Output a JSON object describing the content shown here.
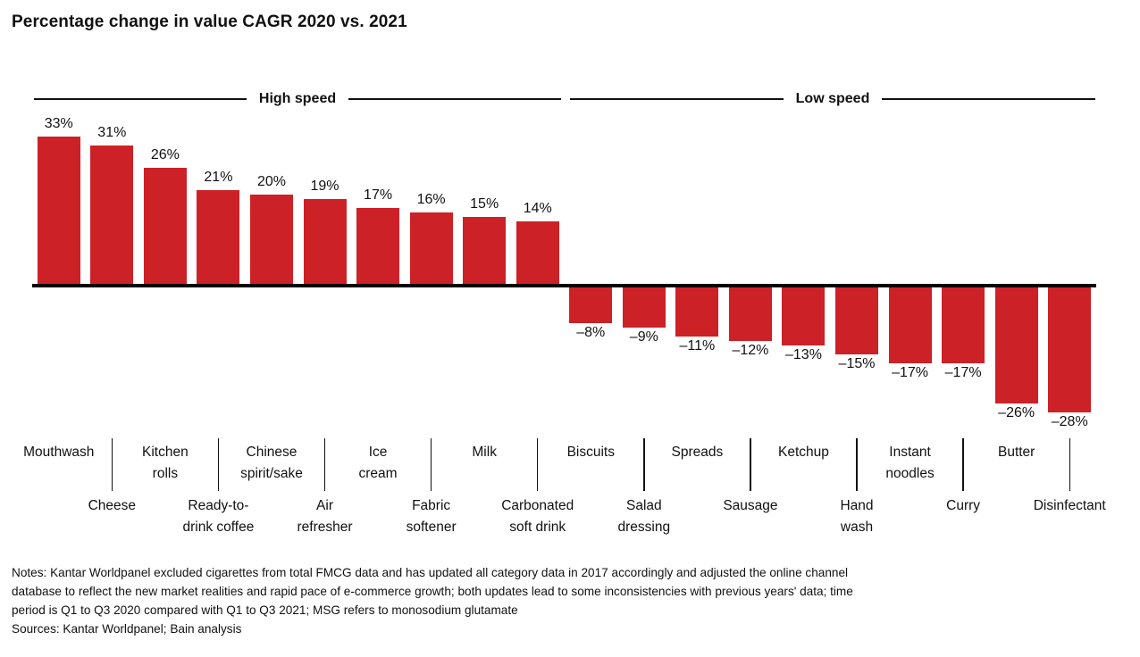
{
  "title": "Percentage change in value CAGR 2020 vs. 2021",
  "headers": {
    "high_speed": "High speed",
    "low_speed": "Low speed"
  },
  "notes_lines": [
    "Notes: Kantar Worldpanel excluded cigarettes from total FMCG data and has updated all category data in 2017 accordingly and adjusted the online channel",
    "database to reflect the new market realities and rapid pace of e-commerce growth; both updates lead to some inconsistencies with previous years' data; time",
    "period is Q1 to Q3 2020 compared with Q1 to Q3 2021; MSG refers to monosodium glutamate"
  ],
  "sources_line": "Sources: Kantar Worldpanel; Bain analysis",
  "colors": {
    "bar": "#cc2127",
    "axis": "#000000",
    "text": "#111111"
  },
  "chart_data": {
    "type": "bar",
    "title": "Percentage change in value CAGR 2020 vs. 2021",
    "unit": "percent",
    "ylim": [
      -28,
      33
    ],
    "grid": false,
    "legend": "none",
    "group_labels": [
      "High speed",
      "Low speed"
    ],
    "points": [
      {
        "category": "Mouthwash",
        "label_lines": [
          "Mouthwash"
        ],
        "value": 33,
        "value_label": "33%",
        "group": "High speed",
        "label_row": "upper"
      },
      {
        "category": "Cheese",
        "label_lines": [
          "Cheese"
        ],
        "value": 31,
        "value_label": "31%",
        "group": "High speed",
        "label_row": "lower"
      },
      {
        "category": "Kitchen rolls",
        "label_lines": [
          "Kitchen",
          "rolls"
        ],
        "value": 26,
        "value_label": "26%",
        "group": "High speed",
        "label_row": "upper"
      },
      {
        "category": "Ready-to-drink coffee",
        "label_lines": [
          "Ready-to-",
          "drink coffee"
        ],
        "value": 21,
        "value_label": "21%",
        "group": "High speed",
        "label_row": "lower"
      },
      {
        "category": "Chinese spirit/sake",
        "label_lines": [
          "Chinese",
          "spirit/sake"
        ],
        "value": 20,
        "value_label": "20%",
        "group": "High speed",
        "label_row": "upper"
      },
      {
        "category": "Air refresher",
        "label_lines": [
          "Air",
          "refresher"
        ],
        "value": 19,
        "value_label": "19%",
        "group": "High speed",
        "label_row": "lower"
      },
      {
        "category": "Ice cream",
        "label_lines": [
          "Ice",
          "cream"
        ],
        "value": 17,
        "value_label": "17%",
        "group": "High speed",
        "label_row": "upper"
      },
      {
        "category": "Fabric softener",
        "label_lines": [
          "Fabric",
          "softener"
        ],
        "value": 16,
        "value_label": "16%",
        "group": "High speed",
        "label_row": "lower"
      },
      {
        "category": "Milk",
        "label_lines": [
          "Milk"
        ],
        "value": 15,
        "value_label": "15%",
        "group": "High speed",
        "label_row": "upper"
      },
      {
        "category": "Carbonated soft drink",
        "label_lines": [
          "Carbonated",
          "soft drink"
        ],
        "value": 14,
        "value_label": "14%",
        "group": "High speed",
        "label_row": "lower"
      },
      {
        "category": "Biscuits",
        "label_lines": [
          "Biscuits"
        ],
        "value": -8,
        "value_label": "–8%",
        "group": "Low speed",
        "label_row": "upper"
      },
      {
        "category": "Salad dressing",
        "label_lines": [
          "Salad",
          "dressing"
        ],
        "value": -9,
        "value_label": "–9%",
        "group": "Low speed",
        "label_row": "lower"
      },
      {
        "category": "Spreads",
        "label_lines": [
          "Spreads"
        ],
        "value": -11,
        "value_label": "–11%",
        "group": "Low speed",
        "label_row": "upper"
      },
      {
        "category": "Sausage",
        "label_lines": [
          "Sausage"
        ],
        "value": -12,
        "value_label": "–12%",
        "group": "Low speed",
        "label_row": "lower"
      },
      {
        "category": "Ketchup",
        "label_lines": [
          "Ketchup"
        ],
        "value": -13,
        "value_label": "–13%",
        "group": "Low speed",
        "label_row": "upper"
      },
      {
        "category": "Hand wash",
        "label_lines": [
          "Hand",
          "wash"
        ],
        "value": -15,
        "value_label": "–15%",
        "group": "Low speed",
        "label_row": "lower"
      },
      {
        "category": "Instant noodles",
        "label_lines": [
          "Instant",
          "noodles"
        ],
        "value": -17,
        "value_label": "–17%",
        "group": "Low speed",
        "label_row": "upper"
      },
      {
        "category": "Curry",
        "label_lines": [
          "Curry"
        ],
        "value": -17,
        "value_label": "–17%",
        "group": "Low speed",
        "label_row": "lower"
      },
      {
        "category": "Butter",
        "label_lines": [
          "Butter"
        ],
        "value": -26,
        "value_label": "–26%",
        "group": "Low speed",
        "label_row": "upper"
      },
      {
        "category": "Disinfectant",
        "label_lines": [
          "Disinfectant"
        ],
        "value": -28,
        "value_label": "–28%",
        "group": "Low speed",
        "label_row": "lower"
      }
    ]
  }
}
